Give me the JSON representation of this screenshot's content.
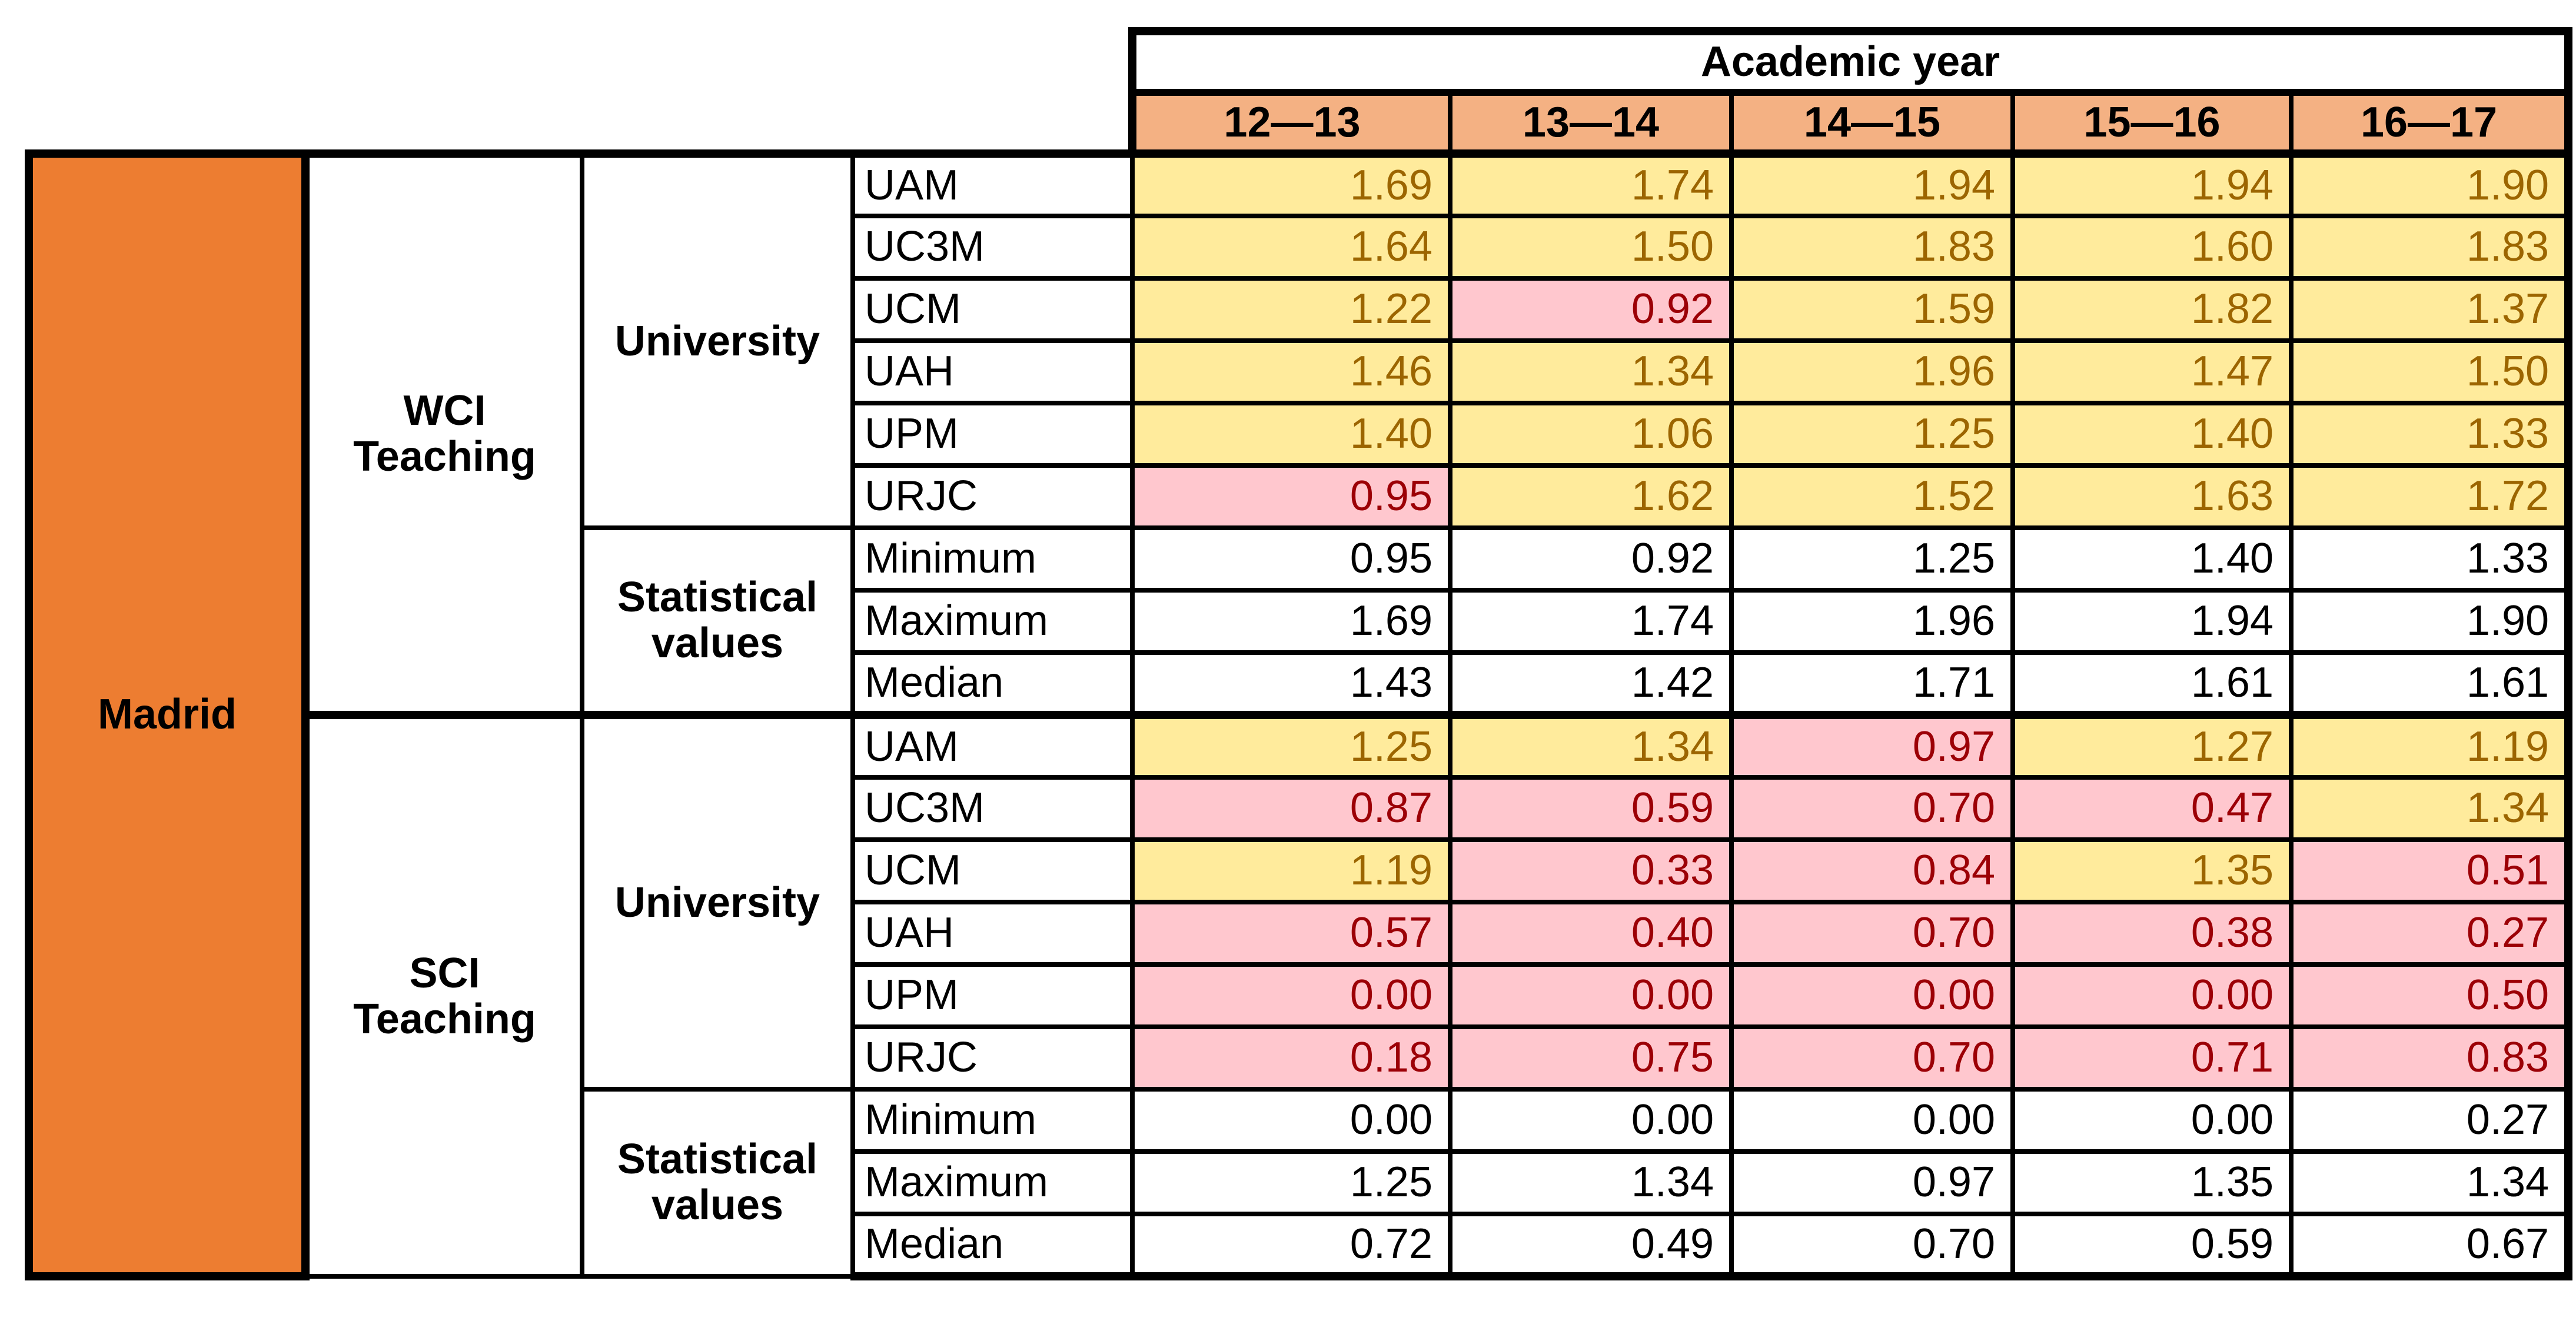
{
  "palette": {
    "madrid_bg": "#ED7D31",
    "year_bg": "#F4B183",
    "high_bg": "#FFEB9C",
    "high_text": "#9C6500",
    "low_bg": "#FFC7CE",
    "low_text": "#9C0006",
    "grid": "#000000",
    "paper": "#FFFFFF"
  },
  "chart_data": {
    "type": "table",
    "title": "Academic year",
    "region": "Madrid",
    "columns": [
      "12—13",
      "13—14",
      "14—15",
      "15—16",
      "16—17"
    ],
    "color_threshold": 1,
    "color_rule": "cells with value >= 1 are yellow with brown text; values < 1 are pink with dark red text; statistical rows are white",
    "sections": [
      {
        "label": "WCI\nTeaching",
        "row_group_label": "University",
        "stat_group_label": "Statistical\nvalues",
        "universities": [
          {
            "label": "UAM",
            "values": [
              1.69,
              1.74,
              1.94,
              1.94,
              1.9
            ]
          },
          {
            "label": "UC3M",
            "values": [
              1.64,
              1.5,
              1.83,
              1.6,
              1.83
            ]
          },
          {
            "label": "UCM",
            "values": [
              1.22,
              0.92,
              1.59,
              1.82,
              1.37
            ]
          },
          {
            "label": "UAH",
            "values": [
              1.46,
              1.34,
              1.96,
              1.47,
              1.5
            ]
          },
          {
            "label": "UPM",
            "values": [
              1.4,
              1.06,
              1.25,
              1.4,
              1.33
            ]
          },
          {
            "label": "URJC",
            "values": [
              0.95,
              1.62,
              1.52,
              1.63,
              1.72
            ]
          }
        ],
        "stats": [
          {
            "label": "Minimum",
            "values": [
              0.95,
              0.92,
              1.25,
              1.4,
              1.33
            ]
          },
          {
            "label": "Maximum",
            "values": [
              1.69,
              1.74,
              1.96,
              1.94,
              1.9
            ]
          },
          {
            "label": "Median",
            "values": [
              1.43,
              1.42,
              1.71,
              1.61,
              1.61
            ]
          }
        ]
      },
      {
        "label": "SCI\nTeaching",
        "row_group_label": "University",
        "stat_group_label": "Statistical\nvalues",
        "universities": [
          {
            "label": "UAM",
            "values": [
              1.25,
              1.34,
              0.97,
              1.27,
              1.19
            ]
          },
          {
            "label": "UC3M",
            "values": [
              0.87,
              0.59,
              0.7,
              0.47,
              1.34
            ]
          },
          {
            "label": "UCM",
            "values": [
              1.19,
              0.33,
              0.84,
              1.35,
              0.51
            ]
          },
          {
            "label": "UAH",
            "values": [
              0.57,
              0.4,
              0.7,
              0.38,
              0.27
            ]
          },
          {
            "label": "UPM",
            "values": [
              0.0,
              0.0,
              0.0,
              0.0,
              0.5
            ]
          },
          {
            "label": "URJC",
            "values": [
              0.18,
              0.75,
              0.7,
              0.71,
              0.83
            ]
          }
        ],
        "stats": [
          {
            "label": "Minimum",
            "values": [
              0.0,
              0.0,
              0.0,
              0.0,
              0.27
            ]
          },
          {
            "label": "Maximum",
            "values": [
              1.25,
              1.34,
              0.97,
              1.35,
              1.34
            ]
          },
          {
            "label": "Median",
            "values": [
              0.72,
              0.49,
              0.7,
              0.59,
              0.67
            ]
          }
        ]
      }
    ]
  }
}
